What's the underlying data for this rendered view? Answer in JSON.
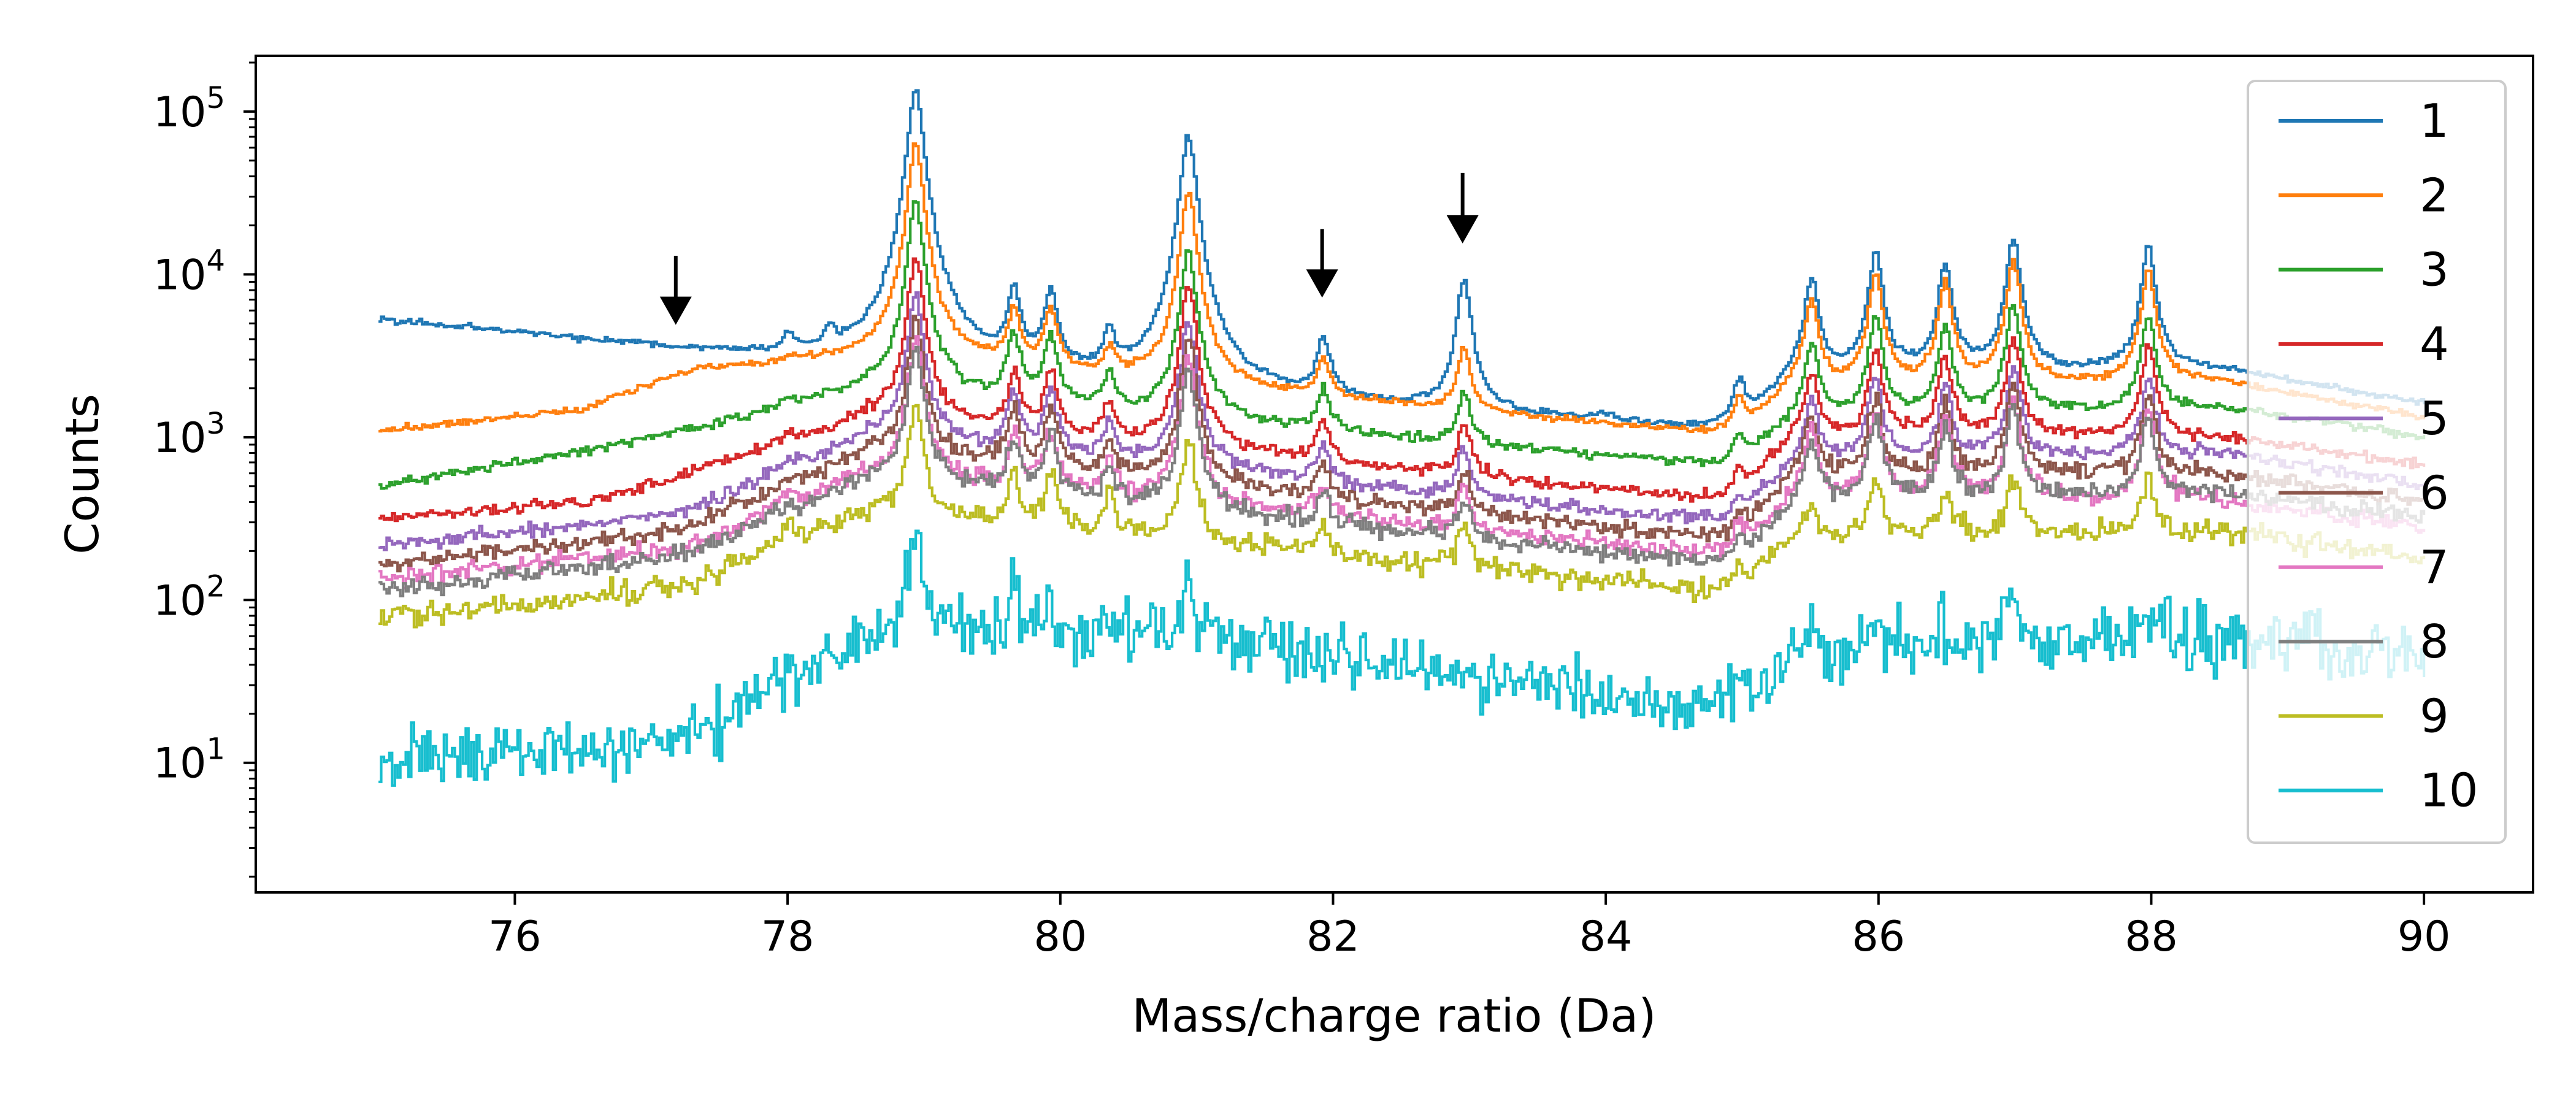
{
  "chart_data": {
    "type": "line",
    "title": "",
    "xlabel": "Mass/charge ratio (Da)",
    "ylabel": "Counts",
    "xlim": [
      74.1,
      90.8
    ],
    "ylim": [
      1.6,
      220000
    ],
    "yscale": "log",
    "xticks": [
      76,
      78,
      80,
      82,
      84,
      86,
      88,
      90
    ],
    "yticks": [
      {
        "value": 10,
        "base": "10",
        "exp": "1"
      },
      {
        "value": 100,
        "base": "10",
        "exp": "2"
      },
      {
        "value": 1000,
        "base": "10",
        "exp": "3"
      },
      {
        "value": 10000,
        "base": "10",
        "exp": "4"
      },
      {
        "value": 100000,
        "base": "10",
        "exp": "5"
      }
    ],
    "legend_position": "right",
    "grid": false,
    "peak_centers": [
      78.0,
      78.3,
      78.93,
      79.65,
      79.92,
      80.35,
      80.93,
      81.92,
      82.95,
      83.97,
      84.97,
      85.5,
      85.97,
      86.48,
      86.98,
      87.97
    ],
    "series": [
      {
        "name": "1",
        "color": "#1f77b4",
        "data_range": [
          75.0,
          90.0
        ],
        "baseline": [
          [
            75.0,
            5300
          ],
          [
            78.8,
            2600
          ],
          [
            84.9,
            1050
          ],
          [
            85.4,
            2400
          ],
          [
            88.5,
            2600
          ],
          [
            90.0,
            1600
          ]
        ],
        "peaks": [
          4000,
          4000,
          135000,
          7500,
          7500,
          4000,
          72000,
          4000,
          9300,
          1350,
          2200,
          9500,
          13500,
          11500,
          16500,
          14800
        ],
        "noise": 0.015
      },
      {
        "name": "2",
        "color": "#ff7f0e",
        "data_range": [
          75.0,
          90.0
        ],
        "baseline": [
          [
            75.0,
            1080
          ],
          [
            76.5,
            1450
          ],
          [
            77.3,
            2600
          ],
          [
            78.8,
            3000
          ],
          [
            84.9,
            1000
          ],
          [
            85.4,
            2000
          ],
          [
            88.5,
            2200
          ],
          [
            90.0,
            1300
          ]
        ],
        "peaks": [
          3000,
          3000,
          62000,
          6000,
          6000,
          3400,
          33000,
          3000,
          3500,
          1100,
          1700,
          7000,
          10000,
          9000,
          12000,
          10500
        ],
        "noise": 0.015
      },
      {
        "name": "3",
        "color": "#2ca02c",
        "data_range": [
          75.0,
          90.0
        ],
        "baseline": [
          [
            75.0,
            490
          ],
          [
            76.8,
            900
          ],
          [
            78.6,
            1900
          ],
          [
            84.9,
            650
          ],
          [
            85.4,
            1300
          ],
          [
            88.5,
            1500
          ],
          [
            90.0,
            1000
          ]
        ],
        "peaks": [
          1700,
          1800,
          28000,
          4300,
          4300,
          2400,
          14500,
          2000,
          1900,
          700,
          1000,
          3800,
          5500,
          4900,
          6500,
          5600
        ],
        "noise": 0.02
      },
      {
        "name": "4",
        "color": "#d62728",
        "data_range": [
          75.0,
          90.0
        ],
        "baseline": [
          [
            75.0,
            310
          ],
          [
            76.6,
            400
          ],
          [
            78.6,
            1300
          ],
          [
            84.9,
            400
          ],
          [
            85.4,
            1000
          ],
          [
            88.5,
            1000
          ],
          [
            90.0,
            680
          ]
        ],
        "peaks": [
          1000,
          900,
          13000,
          2500,
          2500,
          1600,
          8500,
          1300,
          1200,
          450,
          620,
          2500,
          3400,
          3100,
          4100,
          3700
        ],
        "noise": 0.025
      },
      {
        "name": "5",
        "color": "#9467bd",
        "data_range": [
          75.0,
          90.0
        ],
        "baseline": [
          [
            75.0,
            210
          ],
          [
            77.2,
            330
          ],
          [
            78.6,
            1000
          ],
          [
            84.9,
            290
          ],
          [
            85.4,
            700
          ],
          [
            88.5,
            800
          ],
          [
            90.0,
            500
          ]
        ],
        "peaks": [
          700,
          650,
          8000,
          1900,
          1900,
          1200,
          5500,
          900,
          850,
          330,
          450,
          1800,
          2300,
          2100,
          2700,
          2400
        ],
        "noise": 0.03
      },
      {
        "name": "6",
        "color": "#8c564b",
        "data_range": [
          75.0,
          90.0
        ],
        "baseline": [
          [
            75.0,
            160
          ],
          [
            77.2,
            260
          ],
          [
            78.6,
            800
          ],
          [
            84.9,
            230
          ],
          [
            85.4,
            560
          ],
          [
            88.5,
            600
          ],
          [
            90.0,
            400
          ]
        ],
        "peaks": [
          560,
          520,
          5500,
          1500,
          1500,
          900,
          4200,
          700,
          650,
          260,
          350,
          1400,
          1800,
          1600,
          2100,
          1900
        ],
        "noise": 0.035
      },
      {
        "name": "7",
        "color": "#e377c2",
        "data_range": [
          75.0,
          90.0
        ],
        "baseline": [
          [
            75.0,
            130
          ],
          [
            77.2,
            200
          ],
          [
            78.6,
            600
          ],
          [
            84.9,
            185
          ],
          [
            85.4,
            420
          ],
          [
            88.5,
            400
          ],
          [
            90.0,
            280
          ]
        ],
        "peaks": [
          430,
          400,
          4000,
          1100,
          1100,
          700,
          3000,
          520,
          480,
          200,
          270,
          1100,
          1400,
          1300,
          1700,
          1500
        ],
        "noise": 0.04
      },
      {
        "name": "8",
        "color": "#7f7f7f",
        "data_range": [
          75.0,
          90.0
        ],
        "baseline": [
          [
            75.0,
            115
          ],
          [
            77.2,
            180
          ],
          [
            78.6,
            550
          ],
          [
            84.9,
            160
          ],
          [
            85.4,
            380
          ],
          [
            88.5,
            460
          ],
          [
            90.0,
            320
          ]
        ],
        "peaks": [
          400,
          360,
          3500,
          1000,
          1000,
          650,
          2700,
          470,
          430,
          180,
          240,
          1000,
          1300,
          1200,
          1500,
          1350
        ],
        "noise": 0.04
      },
      {
        "name": "9",
        "color": "#bcbd22",
        "data_range": [
          75.0,
          90.0
        ],
        "baseline": [
          [
            75.0,
            75
          ],
          [
            77.2,
            120
          ],
          [
            78.6,
            350
          ],
          [
            84.9,
            110
          ],
          [
            85.4,
            250
          ],
          [
            88.5,
            260
          ],
          [
            90.0,
            180
          ]
        ],
        "peaks": [
          280,
          260,
          1550,
          600,
          600,
          420,
          950,
          300,
          280,
          120,
          160,
          380,
          500,
          450,
          580,
          550
        ],
        "noise": 0.05
      },
      {
        "name": "10",
        "color": "#17becf",
        "data_range": [
          75.0,
          90.0
        ],
        "baseline": [
          [
            75.0,
            10
          ],
          [
            77.2,
            14
          ],
          [
            78.6,
            60
          ],
          [
            81.0,
            60
          ],
          [
            84.9,
            20
          ],
          [
            85.4,
            45
          ],
          [
            88.5,
            60
          ],
          [
            90.0,
            45
          ]
        ],
        "peaks": [
          25,
          25,
          260,
          110,
          100,
          80,
          150,
          40,
          35,
          20,
          30,
          70,
          80,
          70,
          110,
          90
        ],
        "noise": 0.14
      }
    ],
    "annotations": [
      {
        "type": "arrow",
        "x": 77.18,
        "y_tail": 13000,
        "y_head": 4900
      },
      {
        "type": "arrow",
        "x": 81.92,
        "y_tail": 19000,
        "y_head": 7200
      },
      {
        "type": "arrow",
        "x": 82.95,
        "y_tail": 42000,
        "y_head": 15500
      }
    ]
  }
}
